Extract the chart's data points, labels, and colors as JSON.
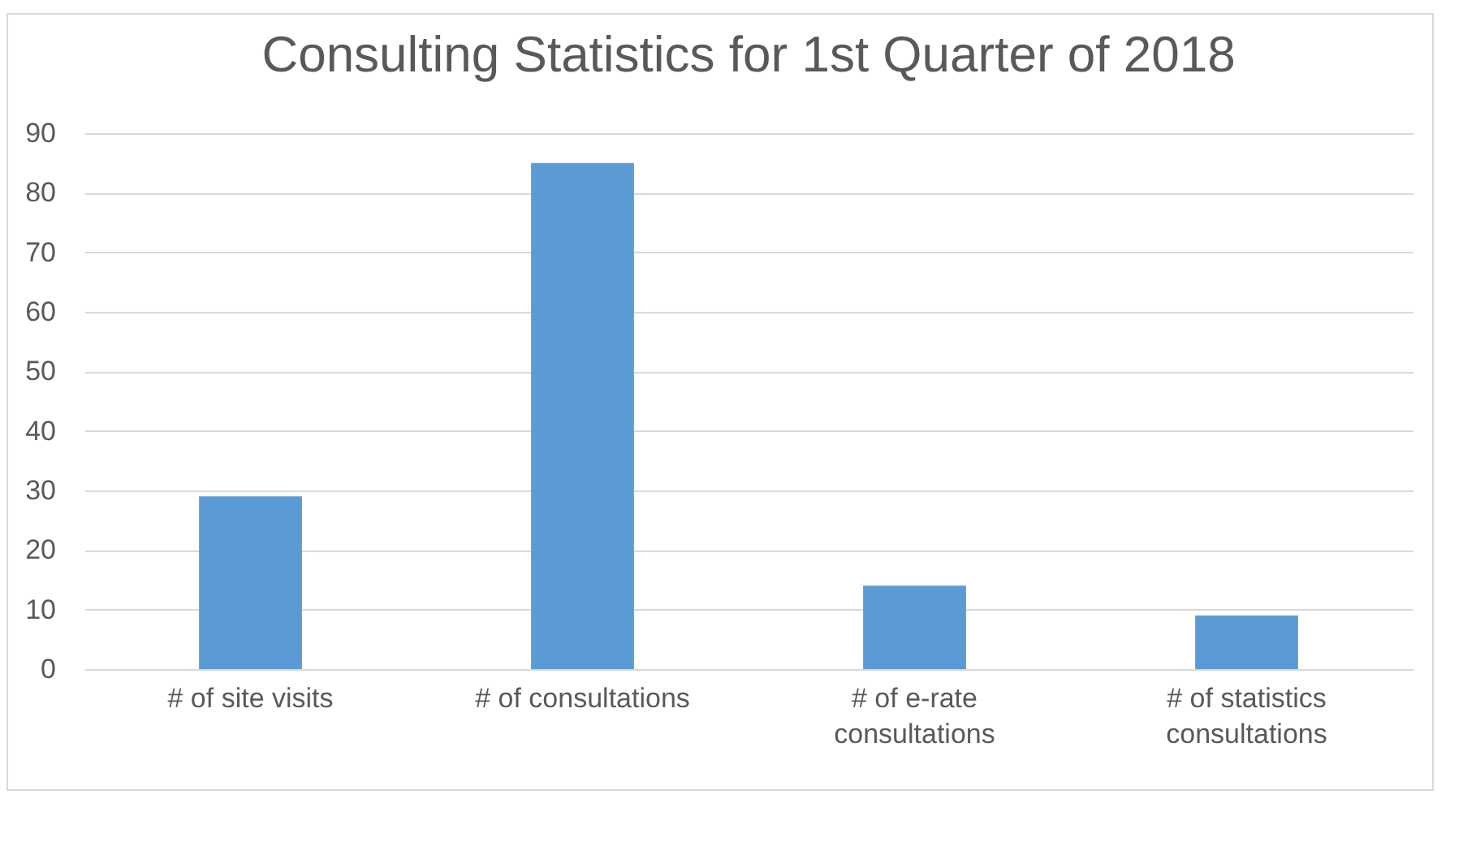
{
  "chart_data": {
    "type": "bar",
    "title": "Consulting Statistics for 1st Quarter of 2018",
    "categories": [
      "# of site visits",
      "# of consultations",
      "# of e-rate consultations",
      "# of statistics consultations"
    ],
    "values": [
      29,
      85,
      14,
      9
    ],
    "color": "#5b9bd5",
    "ylim": [
      0,
      90
    ],
    "yticks": [
      0,
      10,
      20,
      30,
      40,
      50,
      60,
      70,
      80,
      90
    ],
    "grid": "y"
  }
}
